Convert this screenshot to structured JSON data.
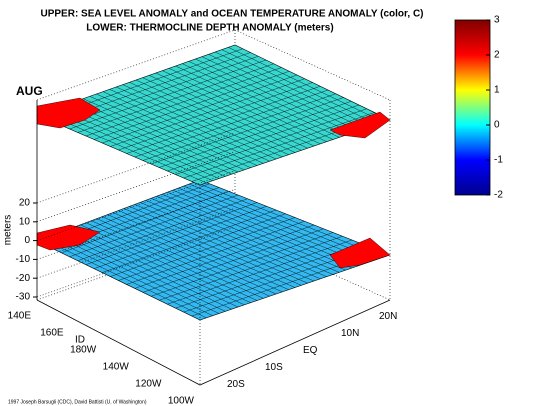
{
  "chart_data": {
    "type": "surface3d",
    "title": "UPPER: SEA LEVEL ANOMALY and OCEAN TEMPERATURE ANOMALY (color, C)",
    "subtitle": "LOWER: THERMOCLINE DEPTH ANOMALY (meters)",
    "annotation": "AUG",
    "credit": "1997 Joseph Barsugli (CDC), David Battisti (U. of Washington)",
    "zlabel": "meters",
    "zlim": [
      -30,
      20
    ],
    "zticks": [
      20,
      10,
      0,
      -10,
      -20,
      -30
    ],
    "xlabel": "ID",
    "x_categories": [
      "140E",
      "160E",
      "180W",
      "140W",
      "120W",
      "100W"
    ],
    "y_categories": [
      "20S",
      "10S",
      "EQ",
      "10N",
      "20N"
    ],
    "colorbar": {
      "clim": [
        -2,
        3
      ],
      "ticks": [
        3,
        2,
        1,
        0,
        -1,
        -2
      ],
      "colors": [
        "#00008f",
        "#0000ff",
        "#00ffff",
        "#ffff00",
        "#ff0000",
        "#800000"
      ]
    }
  }
}
